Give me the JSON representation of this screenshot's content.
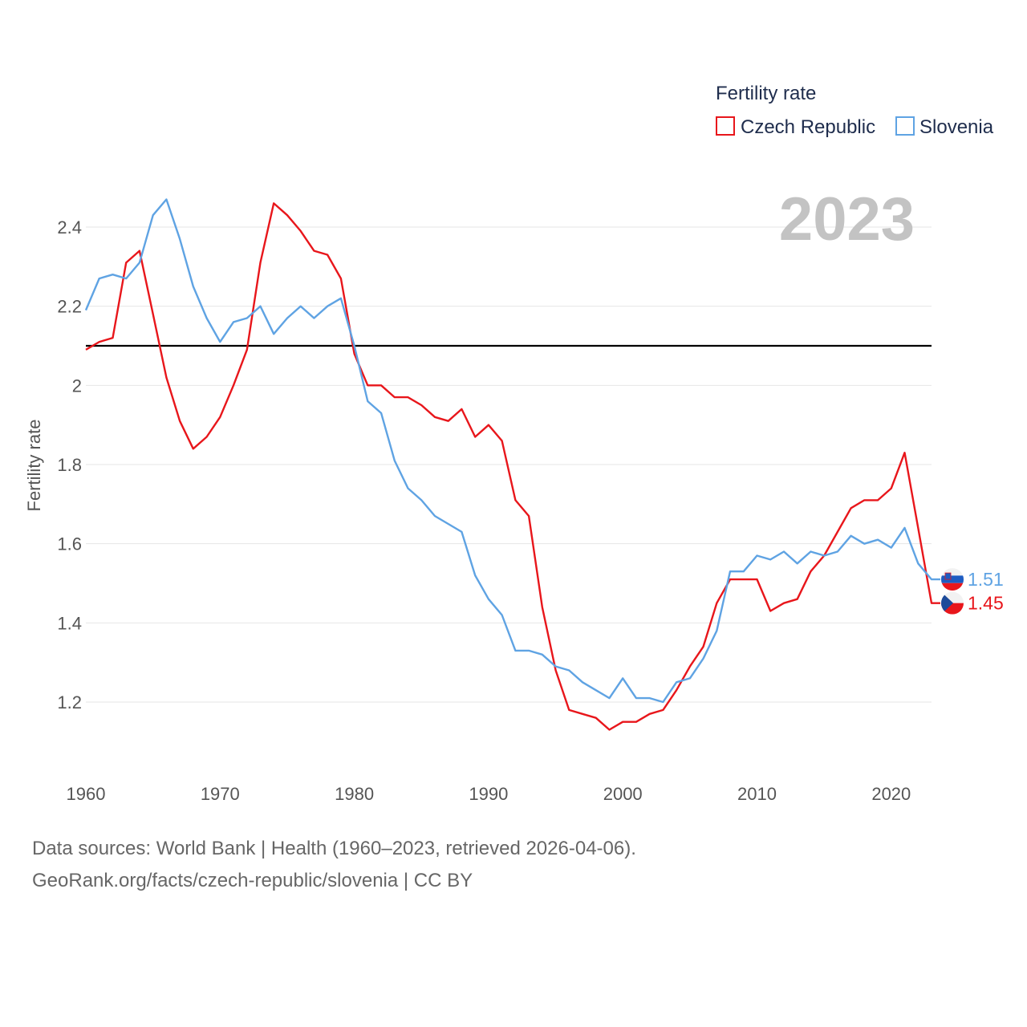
{
  "chart_data": {
    "type": "line",
    "ylabel": "Fertility rate",
    "xlabel": "",
    "xlim": [
      1960,
      2023
    ],
    "ylim": [
      1.1,
      2.5
    ],
    "yticks": [
      1.2,
      1.4,
      1.6,
      1.8,
      2,
      2.2,
      2.4
    ],
    "ytick_labels": [
      "1.2",
      "1.4",
      "1.6",
      "1.8",
      "2",
      "2.2",
      "2.4"
    ],
    "xticks": [
      1960,
      1970,
      1980,
      1990,
      2000,
      2010,
      2020
    ],
    "xtick_labels": [
      "1960",
      "1970",
      "1980",
      "1990",
      "2000",
      "2010",
      "2020"
    ],
    "grid": true,
    "reference_line": 2.1,
    "current_year": "2023",
    "legend": {
      "title": "Fertility rate",
      "position": "top-right"
    },
    "x": [
      1960,
      1961,
      1962,
      1963,
      1964,
      1965,
      1966,
      1967,
      1968,
      1969,
      1970,
      1971,
      1972,
      1973,
      1974,
      1975,
      1976,
      1977,
      1978,
      1979,
      1980,
      1981,
      1982,
      1983,
      1984,
      1985,
      1986,
      1987,
      1988,
      1989,
      1990,
      1991,
      1992,
      1993,
      1994,
      1995,
      1996,
      1997,
      1998,
      1999,
      2000,
      2001,
      2002,
      2003,
      2004,
      2005,
      2006,
      2007,
      2008,
      2009,
      2010,
      2011,
      2012,
      2013,
      2014,
      2015,
      2016,
      2017,
      2018,
      2019,
      2020,
      2021,
      2022,
      2023
    ],
    "series": [
      {
        "name": "Czech Republic",
        "color": "#e8161b",
        "end_label": "1.45",
        "flag": "czech-flag",
        "values": [
          2.09,
          2.11,
          2.12,
          2.31,
          2.34,
          2.18,
          2.02,
          1.91,
          1.84,
          1.87,
          1.92,
          2.0,
          2.09,
          2.31,
          2.46,
          2.43,
          2.39,
          2.34,
          2.33,
          2.27,
          2.08,
          2.0,
          2.0,
          1.97,
          1.97,
          1.95,
          1.92,
          1.91,
          1.94,
          1.87,
          1.9,
          1.86,
          1.71,
          1.67,
          1.44,
          1.28,
          1.18,
          1.17,
          1.16,
          1.13,
          1.15,
          1.15,
          1.17,
          1.18,
          1.23,
          1.29,
          1.34,
          1.45,
          1.51,
          1.51,
          1.51,
          1.43,
          1.45,
          1.46,
          1.53,
          1.57,
          1.63,
          1.69,
          1.71,
          1.71,
          1.74,
          1.83,
          1.64,
          1.45
        ]
      },
      {
        "name": "Slovenia",
        "color": "#5fa3e3",
        "end_label": "1.51",
        "flag": "slovenia-flag",
        "values": [
          2.19,
          2.27,
          2.28,
          2.27,
          2.31,
          2.43,
          2.47,
          2.37,
          2.25,
          2.17,
          2.11,
          2.16,
          2.17,
          2.2,
          2.13,
          2.17,
          2.2,
          2.17,
          2.2,
          2.22,
          2.1,
          1.96,
          1.93,
          1.81,
          1.74,
          1.71,
          1.67,
          1.65,
          1.63,
          1.52,
          1.46,
          1.42,
          1.33,
          1.33,
          1.32,
          1.29,
          1.28,
          1.25,
          1.23,
          1.21,
          1.26,
          1.21,
          1.21,
          1.2,
          1.25,
          1.26,
          1.31,
          1.38,
          1.53,
          1.53,
          1.57,
          1.56,
          1.58,
          1.55,
          1.58,
          1.57,
          1.58,
          1.62,
          1.6,
          1.61,
          1.59,
          1.64,
          1.55,
          1.51
        ]
      }
    ]
  },
  "footer": {
    "line1": "Data sources: World Bank | Health (1960–2023, retrieved 2026-04-06).",
    "line2": "GeoRank.org/facts/czech-republic/slovenia | CC BY"
  }
}
